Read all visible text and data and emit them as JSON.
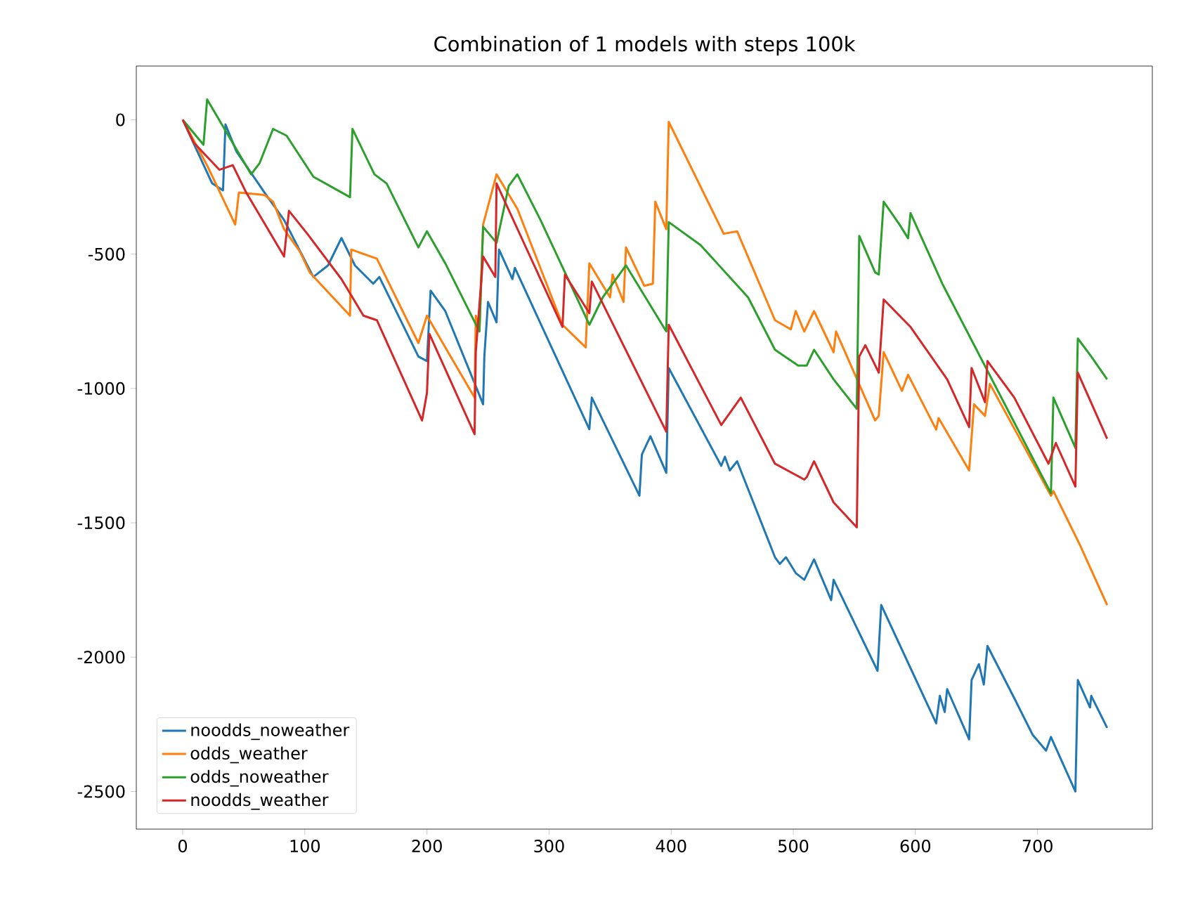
{
  "chart_data": {
    "type": "line",
    "title": "Combination of 1 models with steps 100k",
    "xlim": [
      -38,
      794
    ],
    "ylim": [
      -2640,
      200
    ],
    "xticks": [
      0,
      100,
      200,
      300,
      400,
      500,
      600,
      700
    ],
    "yticks": [
      -2500,
      -2000,
      -1500,
      -1000,
      -500,
      0
    ],
    "legend": "bottom left",
    "grid": false,
    "series": [
      {
        "name": "noodds_noweather",
        "color": "#1f77b4",
        "x": [
          0,
          24,
          33,
          35,
          44,
          67,
          83,
          107,
          119,
          130,
          141,
          156,
          161,
          193,
          200,
          203,
          215,
          246,
          247,
          250,
          257,
          259,
          270,
          272,
          333,
          335,
          374,
          376,
          383,
          396,
          398,
          441,
          444,
          448,
          454,
          485,
          489,
          494,
          502,
          509,
          517,
          531,
          533,
          569,
          572,
          617,
          620,
          624,
          626,
          644,
          646,
          652,
          656,
          659,
          681,
          696,
          707,
          711,
          731,
          733,
          743,
          744,
          757
        ],
        "values": [
          0,
          -236,
          -263,
          -17,
          -118,
          -271,
          -373,
          -585,
          -542,
          -440,
          -542,
          -610,
          -585,
          -881,
          -898,
          -636,
          -712,
          -1059,
          -881,
          -678,
          -754,
          -483,
          -593,
          -551,
          -1152,
          -1034,
          -1399,
          -1246,
          -1178,
          -1314,
          -924,
          -1288,
          -1254,
          -1305,
          -1271,
          -1628,
          -1653,
          -1628,
          -1687,
          -1712,
          -1636,
          -1788,
          -1712,
          -2051,
          -1806,
          -2246,
          -2144,
          -2204,
          -2119,
          -2306,
          -2085,
          -2026,
          -2102,
          -1958,
          -2153,
          -2289,
          -2348,
          -2297,
          -2500,
          -2085,
          -2187,
          -2144,
          -2263
        ]
      },
      {
        "name": "odds_weather",
        "color": "#ff7f0e",
        "x": [
          0,
          20,
          43,
          46,
          67,
          74,
          83,
          96,
          104,
          137,
          138,
          159,
          193,
          200,
          215,
          239,
          240,
          243,
          246,
          257,
          274,
          311,
          330,
          333,
          350,
          352,
          361,
          363,
          378,
          385,
          387,
          396,
          398,
          443,
          454,
          485,
          498,
          502,
          509,
          517,
          533,
          535,
          567,
          570,
          574,
          589,
          594,
          617,
          619,
          644,
          648,
          657,
          661,
          711,
          713,
          735,
          757
        ],
        "values": [
          0,
          -170,
          -390,
          -271,
          -280,
          -305,
          -407,
          -491,
          -568,
          -729,
          -483,
          -517,
          -831,
          -729,
          -847,
          -1034,
          -729,
          -780,
          -390,
          -203,
          -331,
          -763,
          -847,
          -534,
          -661,
          -576,
          -678,
          -475,
          -618,
          -610,
          -305,
          -407,
          -8,
          -424,
          -415,
          -746,
          -780,
          -712,
          -788,
          -712,
          -865,
          -788,
          -1119,
          -1102,
          -865,
          -1009,
          -949,
          -1153,
          -1110,
          -1305,
          -1059,
          -1102,
          -983,
          -1399,
          -1382,
          -1585,
          -1806
        ]
      },
      {
        "name": "odds_noweather",
        "color": "#2ca02c",
        "x": [
          0,
          17,
          20,
          56,
          63,
          74,
          85,
          107,
          137,
          139,
          157,
          167,
          193,
          200,
          215,
          243,
          246,
          257,
          267,
          274,
          293,
          333,
          344,
          363,
          396,
          398,
          424,
          463,
          485,
          504,
          511,
          517,
          533,
          552,
          554,
          567,
          570,
          574,
          587,
          594,
          596,
          622,
          711,
          713,
          731,
          733,
          744,
          757
        ],
        "values": [
          0,
          -93,
          76,
          -203,
          -161,
          -34,
          -59,
          -212,
          -288,
          -34,
          -203,
          -237,
          -475,
          -415,
          -534,
          -788,
          -398,
          -458,
          -246,
          -203,
          -373,
          -763,
          -661,
          -542,
          -788,
          -381,
          -466,
          -661,
          -856,
          -915,
          -915,
          -856,
          -966,
          -1076,
          -432,
          -568,
          -576,
          -305,
          -390,
          -441,
          -347,
          -610,
          -1390,
          -1034,
          -1221,
          -814,
          -881,
          -966
        ]
      },
      {
        "name": "noodds_weather",
        "color": "#d62728",
        "x": [
          0,
          9,
          30,
          41,
          52,
          83,
          87,
          102,
          130,
          148,
          159,
          196,
          200,
          202,
          239,
          240,
          246,
          256,
          257,
          311,
          313,
          333,
          335,
          396,
          398,
          441,
          457,
          485,
          509,
          511,
          517,
          533,
          552,
          554,
          559,
          570,
          574,
          596,
          626,
          644,
          646,
          657,
          659,
          681,
          709,
          715,
          731,
          733,
          757
        ],
        "values": [
          0,
          -85,
          -186,
          -169,
          -271,
          -509,
          -339,
          -424,
          -593,
          -729,
          -746,
          -1119,
          -1017,
          -797,
          -1170,
          -865,
          -509,
          -585,
          -237,
          -771,
          -576,
          -720,
          -602,
          -1161,
          -763,
          -1136,
          -1034,
          -1280,
          -1339,
          -1330,
          -1271,
          -1424,
          -1517,
          -881,
          -839,
          -941,
          -669,
          -771,
          -966,
          -1144,
          -924,
          -1051,
          -898,
          -1034,
          -1280,
          -1203,
          -1365,
          -941,
          -1187
        ]
      }
    ]
  }
}
